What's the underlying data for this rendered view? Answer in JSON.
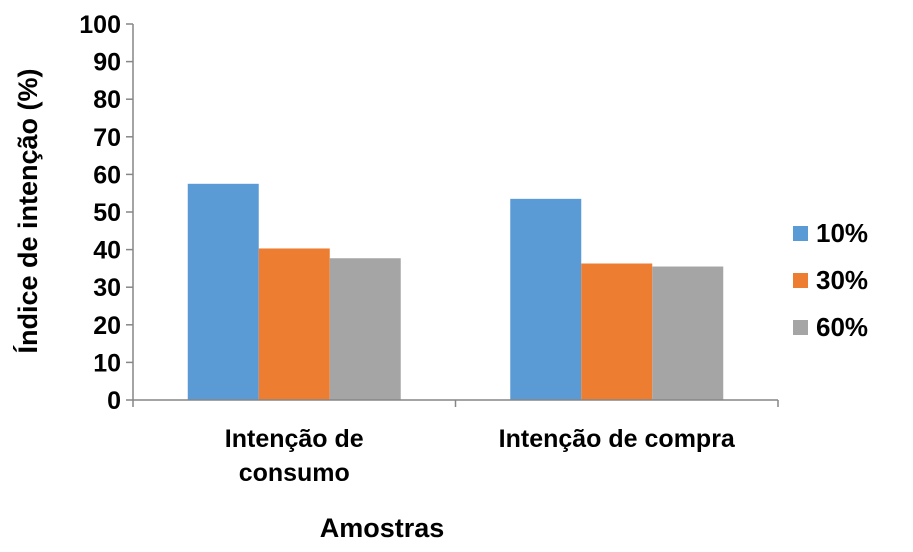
{
  "chart_data": {
    "type": "bar",
    "title": "",
    "xlabel": "Amostras",
    "ylabel": "Índice de intenção (%)",
    "ylim": [
      0,
      100
    ],
    "yticks": [
      0,
      10,
      20,
      30,
      40,
      50,
      60,
      70,
      80,
      90,
      100
    ],
    "categories": [
      [
        "Intenção de",
        "consumo"
      ],
      [
        "Intenção de compra"
      ]
    ],
    "series": [
      {
        "name": "10%",
        "color": "#5B9BD5",
        "values": [
          57.5,
          53.5
        ]
      },
      {
        "name": "30%",
        "color": "#ED7D31",
        "values": [
          40.3,
          36.3
        ]
      },
      {
        "name": "60%",
        "color": "#A5A5A5",
        "values": [
          37.7,
          35.5
        ]
      }
    ],
    "grid": false,
    "legend_position": "right"
  }
}
